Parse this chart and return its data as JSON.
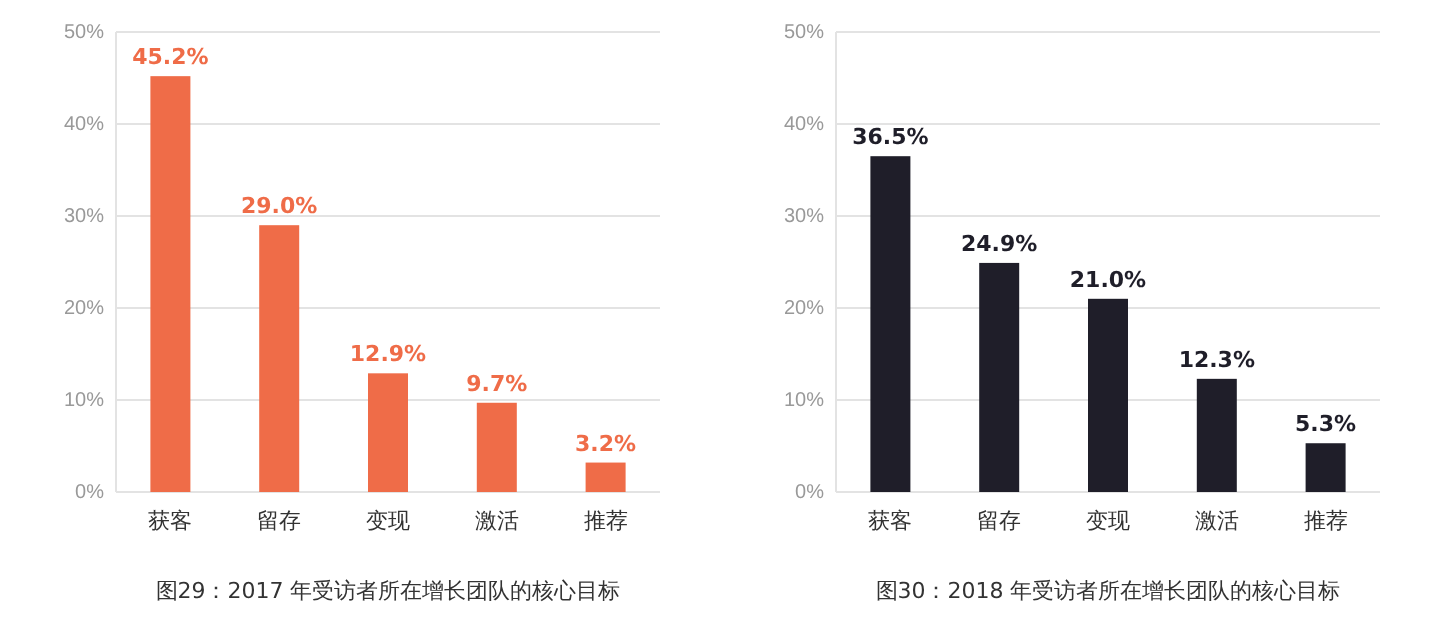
{
  "chart_data": [
    {
      "type": "bar",
      "categories": [
        "获客",
        "留存",
        "变现",
        "激活",
        "推荐"
      ],
      "values": [
        45.2,
        29.0,
        12.9,
        9.7,
        3.2
      ],
      "color": "#ef6c48",
      "value_labels": [
        "45.2%",
        "29.0%",
        "12.9%",
        "9.7%",
        "3.2%"
      ],
      "ylim": [
        0,
        50
      ],
      "yticks": [
        {
          "value": 0,
          "label": "0%"
        },
        {
          "value": 10,
          "label": "10%"
        },
        {
          "value": 20,
          "label": "20%"
        },
        {
          "value": 30,
          "label": "30%"
        },
        {
          "value": 40,
          "label": "40%"
        },
        {
          "value": 50,
          "label": "50%"
        }
      ],
      "grid": "y",
      "annotations": [
        "图29：2017 年受访者所在增长团队的核心目标"
      ]
    },
    {
      "type": "bar",
      "categories": [
        "获客",
        "留存",
        "变现",
        "激活",
        "推荐"
      ],
      "values": [
        36.5,
        24.9,
        21.0,
        12.3,
        5.3
      ],
      "color": "#1f1e29",
      "value_labels": [
        "36.5%",
        "24.9%",
        "21.0%",
        "12.3%",
        "5.3%"
      ],
      "ylim": [
        0,
        50
      ],
      "yticks": [
        {
          "value": 0,
          "label": "0%"
        },
        {
          "value": 10,
          "label": "10%"
        },
        {
          "value": 20,
          "label": "20%"
        },
        {
          "value": 30,
          "label": "30%"
        },
        {
          "value": 40,
          "label": "40%"
        },
        {
          "value": 50,
          "label": "50%"
        }
      ],
      "grid": "y",
      "annotations": [
        "图30：2018 年受访者所在增长团队的核心目标"
      ]
    }
  ]
}
